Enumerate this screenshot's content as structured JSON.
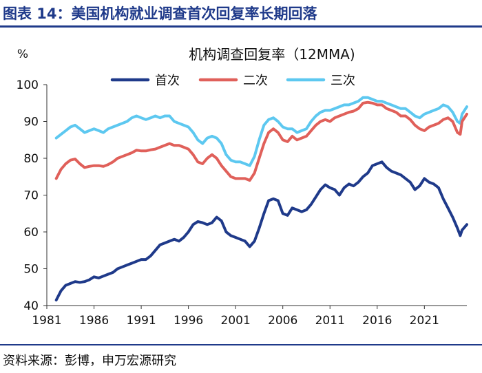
{
  "figure_title": "图表 14：美国机构就业调查首次回复率长期回落",
  "source": "资料来源：彭博，申万宏源研究",
  "chart_data": {
    "type": "line",
    "title": "机构调查回复率（12MMA)",
    "ylabel": "%",
    "xlabel": "",
    "xlim": [
      1981,
      2025.5
    ],
    "ylim": [
      40,
      100
    ],
    "yticks": [
      40,
      50,
      60,
      70,
      80,
      90,
      100
    ],
    "xticks": [
      1981,
      1986,
      1991,
      1996,
      2001,
      2006,
      2011,
      2016,
      2021
    ],
    "legend_position": "top",
    "series": [
      {
        "name": "首次",
        "color": "#1f3a8a",
        "points": [
          [
            1982.0,
            41.5
          ],
          [
            1982.5,
            44.0
          ],
          [
            1983.0,
            45.5
          ],
          [
            1983.5,
            46.0
          ],
          [
            1984.0,
            46.5
          ],
          [
            1984.5,
            46.3
          ],
          [
            1985.0,
            46.5
          ],
          [
            1985.5,
            47.0
          ],
          [
            1986.0,
            47.8
          ],
          [
            1986.5,
            47.5
          ],
          [
            1987.0,
            48.0
          ],
          [
            1987.5,
            48.5
          ],
          [
            1988.0,
            49.0
          ],
          [
            1988.5,
            50.0
          ],
          [
            1989.0,
            50.5
          ],
          [
            1989.5,
            51.0
          ],
          [
            1990.0,
            51.5
          ],
          [
            1990.5,
            52.0
          ],
          [
            1991.0,
            52.5
          ],
          [
            1991.5,
            52.5
          ],
          [
            1992.0,
            53.5
          ],
          [
            1992.5,
            55.0
          ],
          [
            1993.0,
            56.5
          ],
          [
            1993.5,
            57.0
          ],
          [
            1994.0,
            57.5
          ],
          [
            1994.5,
            58.0
          ],
          [
            1995.0,
            57.5
          ],
          [
            1995.5,
            58.5
          ],
          [
            1996.0,
            60.0
          ],
          [
            1996.5,
            62.0
          ],
          [
            1997.0,
            62.8
          ],
          [
            1997.5,
            62.5
          ],
          [
            1998.0,
            62.0
          ],
          [
            1998.5,
            62.5
          ],
          [
            1999.0,
            64.0
          ],
          [
            1999.5,
            63.0
          ],
          [
            2000.0,
            60.0
          ],
          [
            2000.5,
            59.0
          ],
          [
            2001.0,
            58.5
          ],
          [
            2001.5,
            58.0
          ],
          [
            2002.0,
            57.5
          ],
          [
            2002.5,
            56.0
          ],
          [
            2003.0,
            57.5
          ],
          [
            2003.5,
            61.0
          ],
          [
            2004.0,
            65.0
          ],
          [
            2004.5,
            68.5
          ],
          [
            2005.0,
            69.0
          ],
          [
            2005.5,
            68.5
          ],
          [
            2006.0,
            65.0
          ],
          [
            2006.5,
            64.5
          ],
          [
            2007.0,
            66.5
          ],
          [
            2007.5,
            66.0
          ],
          [
            2008.0,
            65.5
          ],
          [
            2008.5,
            66.0
          ],
          [
            2009.0,
            67.5
          ],
          [
            2009.5,
            69.5
          ],
          [
            2010.0,
            71.5
          ],
          [
            2010.5,
            72.8
          ],
          [
            2011.0,
            72.0
          ],
          [
            2011.5,
            71.5
          ],
          [
            2012.0,
            70.0
          ],
          [
            2012.5,
            72.0
          ],
          [
            2013.0,
            73.0
          ],
          [
            2013.5,
            72.5
          ],
          [
            2014.0,
            73.5
          ],
          [
            2014.5,
            75.0
          ],
          [
            2015.0,
            76.0
          ],
          [
            2015.5,
            78.0
          ],
          [
            2016.0,
            78.5
          ],
          [
            2016.5,
            79.0
          ],
          [
            2017.0,
            77.5
          ],
          [
            2017.5,
            76.5
          ],
          [
            2018.0,
            76.0
          ],
          [
            2018.5,
            75.5
          ],
          [
            2019.0,
            74.5
          ],
          [
            2019.5,
            73.5
          ],
          [
            2020.0,
            71.5
          ],
          [
            2020.5,
            72.5
          ],
          [
            2021.0,
            74.5
          ],
          [
            2021.5,
            73.5
          ],
          [
            2022.0,
            73.0
          ],
          [
            2022.5,
            72.0
          ],
          [
            2023.0,
            69.0
          ],
          [
            2023.5,
            66.5
          ],
          [
            2024.0,
            64.0
          ],
          [
            2024.5,
            61.0
          ],
          [
            2024.8,
            59.0
          ],
          [
            2025.0,
            60.5
          ],
          [
            2025.5,
            62.0
          ]
        ]
      },
      {
        "name": "二次",
        "color": "#e0605a",
        "points": [
          [
            1982.0,
            74.5
          ],
          [
            1982.5,
            77.0
          ],
          [
            1983.0,
            78.5
          ],
          [
            1983.5,
            79.5
          ],
          [
            1984.0,
            79.8
          ],
          [
            1984.5,
            78.5
          ],
          [
            1985.0,
            77.5
          ],
          [
            1985.5,
            77.8
          ],
          [
            1986.0,
            78.0
          ],
          [
            1986.5,
            78.0
          ],
          [
            1987.0,
            77.8
          ],
          [
            1987.5,
            78.3
          ],
          [
            1988.0,
            79.0
          ],
          [
            1988.5,
            80.0
          ],
          [
            1989.0,
            80.5
          ],
          [
            1989.5,
            81.0
          ],
          [
            1990.0,
            81.5
          ],
          [
            1990.5,
            82.2
          ],
          [
            1991.0,
            82.0
          ],
          [
            1991.5,
            82.0
          ],
          [
            1992.0,
            82.3
          ],
          [
            1992.5,
            82.5
          ],
          [
            1993.0,
            83.0
          ],
          [
            1993.5,
            83.5
          ],
          [
            1994.0,
            84.0
          ],
          [
            1994.5,
            83.5
          ],
          [
            1995.0,
            83.5
          ],
          [
            1995.5,
            83.0
          ],
          [
            1996.0,
            82.5
          ],
          [
            1996.5,
            81.0
          ],
          [
            1997.0,
            79.0
          ],
          [
            1997.5,
            78.5
          ],
          [
            1998.0,
            80.0
          ],
          [
            1998.5,
            81.0
          ],
          [
            1999.0,
            80.0
          ],
          [
            1999.5,
            78.0
          ],
          [
            2000.0,
            76.5
          ],
          [
            2000.5,
            75.0
          ],
          [
            2001.0,
            74.5
          ],
          [
            2001.5,
            74.5
          ],
          [
            2002.0,
            74.5
          ],
          [
            2002.5,
            74.0
          ],
          [
            2003.0,
            76.0
          ],
          [
            2003.5,
            80.0
          ],
          [
            2004.0,
            84.0
          ],
          [
            2004.5,
            87.0
          ],
          [
            2005.0,
            88.0
          ],
          [
            2005.5,
            87.0
          ],
          [
            2006.0,
            85.0
          ],
          [
            2006.5,
            84.5
          ],
          [
            2007.0,
            86.0
          ],
          [
            2007.5,
            85.0
          ],
          [
            2008.0,
            85.5
          ],
          [
            2008.5,
            86.0
          ],
          [
            2009.0,
            87.5
          ],
          [
            2009.5,
            89.0
          ],
          [
            2010.0,
            90.0
          ],
          [
            2010.5,
            90.5
          ],
          [
            2011.0,
            90.0
          ],
          [
            2011.5,
            91.0
          ],
          [
            2012.0,
            91.5
          ],
          [
            2012.5,
            92.0
          ],
          [
            2013.0,
            92.5
          ],
          [
            2013.5,
            92.8
          ],
          [
            2014.0,
            93.5
          ],
          [
            2014.5,
            95.0
          ],
          [
            2015.0,
            95.2
          ],
          [
            2015.5,
            95.0
          ],
          [
            2016.0,
            94.5
          ],
          [
            2016.5,
            94.5
          ],
          [
            2017.0,
            93.5
          ],
          [
            2017.5,
            93.0
          ],
          [
            2018.0,
            92.5
          ],
          [
            2018.5,
            91.5
          ],
          [
            2019.0,
            91.5
          ],
          [
            2019.5,
            90.5
          ],
          [
            2020.0,
            89.0
          ],
          [
            2020.5,
            88.0
          ],
          [
            2021.0,
            87.5
          ],
          [
            2021.5,
            88.5
          ],
          [
            2022.0,
            89.0
          ],
          [
            2022.5,
            89.5
          ],
          [
            2023.0,
            90.5
          ],
          [
            2023.5,
            91.0
          ],
          [
            2024.0,
            90.0
          ],
          [
            2024.5,
            87.0
          ],
          [
            2024.8,
            86.5
          ],
          [
            2025.0,
            90.0
          ],
          [
            2025.5,
            92.0
          ]
        ]
      },
      {
        "name": "三次",
        "color": "#5dc8f0",
        "points": [
          [
            1982.0,
            85.5
          ],
          [
            1982.5,
            86.5
          ],
          [
            1983.0,
            87.5
          ],
          [
            1983.5,
            88.5
          ],
          [
            1984.0,
            89.0
          ],
          [
            1984.5,
            88.0
          ],
          [
            1985.0,
            87.0
          ],
          [
            1985.5,
            87.5
          ],
          [
            1986.0,
            88.0
          ],
          [
            1986.5,
            87.5
          ],
          [
            1987.0,
            87.0
          ],
          [
            1987.5,
            88.0
          ],
          [
            1988.0,
            88.5
          ],
          [
            1988.5,
            89.0
          ],
          [
            1989.0,
            89.5
          ],
          [
            1989.5,
            90.0
          ],
          [
            1990.0,
            91.0
          ],
          [
            1990.5,
            91.5
          ],
          [
            1991.0,
            91.0
          ],
          [
            1991.5,
            90.5
          ],
          [
            1992.0,
            91.0
          ],
          [
            1992.5,
            91.5
          ],
          [
            1993.0,
            91.0
          ],
          [
            1993.5,
            91.5
          ],
          [
            1994.0,
            91.5
          ],
          [
            1994.5,
            90.0
          ],
          [
            1995.0,
            89.5
          ],
          [
            1995.5,
            89.0
          ],
          [
            1996.0,
            88.5
          ],
          [
            1996.5,
            87.0
          ],
          [
            1997.0,
            85.0
          ],
          [
            1997.5,
            84.0
          ],
          [
            1998.0,
            85.5
          ],
          [
            1998.5,
            86.0
          ],
          [
            1999.0,
            85.5
          ],
          [
            1999.5,
            84.0
          ],
          [
            2000.0,
            81.0
          ],
          [
            2000.5,
            79.5
          ],
          [
            2001.0,
            79.0
          ],
          [
            2001.5,
            79.0
          ],
          [
            2002.0,
            78.5
          ],
          [
            2002.5,
            78.0
          ],
          [
            2003.0,
            80.5
          ],
          [
            2003.5,
            85.0
          ],
          [
            2004.0,
            89.0
          ],
          [
            2004.5,
            90.5
          ],
          [
            2005.0,
            91.0
          ],
          [
            2005.5,
            90.0
          ],
          [
            2006.0,
            88.5
          ],
          [
            2006.5,
            88.0
          ],
          [
            2007.0,
            88.0
          ],
          [
            2007.5,
            87.0
          ],
          [
            2008.0,
            87.5
          ],
          [
            2008.5,
            88.0
          ],
          [
            2009.0,
            90.0
          ],
          [
            2009.5,
            91.5
          ],
          [
            2010.0,
            92.5
          ],
          [
            2010.5,
            93.0
          ],
          [
            2011.0,
            93.0
          ],
          [
            2011.5,
            93.5
          ],
          [
            2012.0,
            94.0
          ],
          [
            2012.5,
            94.5
          ],
          [
            2013.0,
            94.5
          ],
          [
            2013.5,
            95.0
          ],
          [
            2014.0,
            95.5
          ],
          [
            2014.5,
            96.5
          ],
          [
            2015.0,
            96.5
          ],
          [
            2015.5,
            96.0
          ],
          [
            2016.0,
            95.5
          ],
          [
            2016.5,
            95.5
          ],
          [
            2017.0,
            95.0
          ],
          [
            2017.5,
            94.5
          ],
          [
            2018.0,
            94.0
          ],
          [
            2018.5,
            93.5
          ],
          [
            2019.0,
            93.5
          ],
          [
            2019.5,
            92.5
          ],
          [
            2020.0,
            91.5
          ],
          [
            2020.5,
            91.0
          ],
          [
            2021.0,
            92.0
          ],
          [
            2021.5,
            92.5
          ],
          [
            2022.0,
            93.0
          ],
          [
            2022.5,
            93.5
          ],
          [
            2023.0,
            94.5
          ],
          [
            2023.5,
            94.0
          ],
          [
            2024.0,
            92.5
          ],
          [
            2024.5,
            90.0
          ],
          [
            2024.8,
            89.5
          ],
          [
            2025.0,
            92.0
          ],
          [
            2025.5,
            94.0
          ]
        ]
      }
    ]
  }
}
